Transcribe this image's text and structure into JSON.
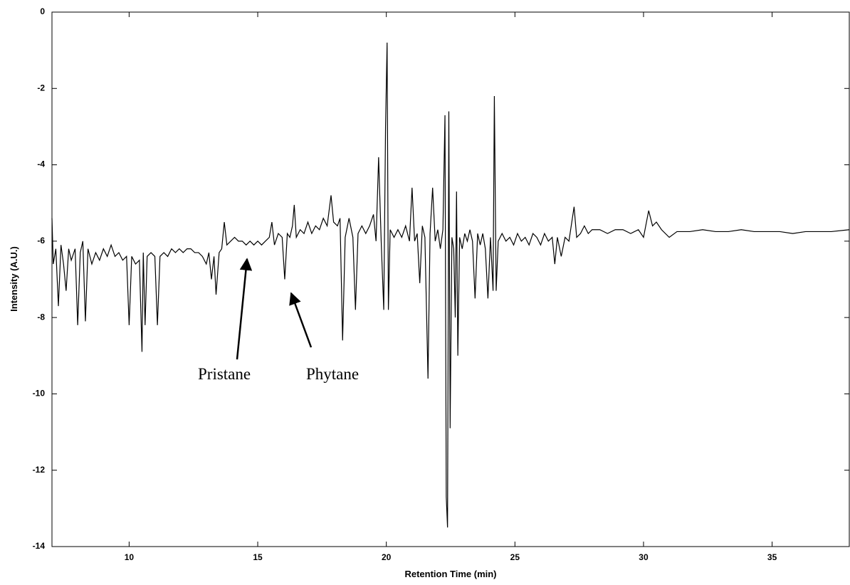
{
  "chart_data": {
    "type": "line",
    "xlabel": "Retention Time (min)",
    "ylabel": "Intensity (A.U.)",
    "x": [
      7.0,
      7.05,
      7.15,
      7.25,
      7.35,
      7.45,
      7.55,
      7.65,
      7.75,
      7.9,
      8.0,
      8.1,
      8.2,
      8.3,
      8.4,
      8.55,
      8.7,
      8.85,
      9.0,
      9.15,
      9.3,
      9.45,
      9.6,
      9.75,
      9.9,
      10.0,
      10.1,
      10.25,
      10.4,
      10.5,
      10.55,
      10.62,
      10.7,
      10.85,
      11.0,
      11.1,
      11.2,
      11.35,
      11.5,
      11.65,
      11.8,
      11.95,
      12.1,
      12.25,
      12.4,
      12.55,
      12.7,
      12.85,
      13.0,
      13.1,
      13.2,
      13.3,
      13.38,
      13.5,
      13.6,
      13.7,
      13.8,
      13.95,
      14.1,
      14.25,
      14.4,
      14.55,
      14.7,
      14.85,
      15.0,
      15.15,
      15.3,
      15.45,
      15.55,
      15.65,
      15.8,
      15.95,
      16.05,
      16.15,
      16.25,
      16.35,
      16.42,
      16.5,
      16.65,
      16.8,
      16.95,
      17.1,
      17.25,
      17.4,
      17.55,
      17.7,
      17.85,
      17.95,
      18.1,
      18.2,
      18.3,
      18.4,
      18.55,
      18.7,
      18.8,
      18.9,
      19.05,
      19.2,
      19.35,
      19.5,
      19.6,
      19.7,
      19.8,
      19.9,
      19.97,
      20.03,
      20.08,
      20.15,
      20.3,
      20.45,
      20.6,
      20.75,
      20.9,
      21.0,
      21.1,
      21.2,
      21.3,
      21.4,
      21.5,
      21.62,
      21.7,
      21.8,
      21.9,
      22.0,
      22.1,
      22.2,
      22.28,
      22.33,
      22.38,
      22.43,
      22.48,
      22.55,
      22.62,
      22.68,
      22.73,
      22.78,
      22.85,
      22.95,
      23.05,
      23.15,
      23.25,
      23.35,
      23.45,
      23.55,
      23.65,
      23.75,
      23.85,
      23.95,
      24.05,
      24.15,
      24.2,
      24.27,
      24.35,
      24.5,
      24.65,
      24.8,
      24.95,
      25.1,
      25.25,
      25.4,
      25.55,
      25.7,
      25.85,
      26.0,
      26.15,
      26.3,
      26.45,
      26.55,
      26.65,
      26.8,
      26.95,
      27.1,
      27.3,
      27.4,
      27.55,
      27.7,
      27.85,
      28.0,
      28.3,
      28.6,
      28.9,
      29.2,
      29.5,
      29.8,
      30.0,
      30.2,
      30.35,
      30.5,
      30.7,
      31.0,
      31.3,
      31.8,
      32.3,
      32.8,
      33.3,
      33.8,
      34.3,
      34.8,
      35.3,
      35.8,
      36.3,
      36.8,
      37.3,
      38.0
    ],
    "values": [
      -5.4,
      -6.6,
      -6.2,
      -7.7,
      -6.1,
      -6.6,
      -7.3,
      -6.2,
      -6.5,
      -6.2,
      -8.2,
      -6.3,
      -6.0,
      -8.1,
      -6.2,
      -6.6,
      -6.3,
      -6.5,
      -6.2,
      -6.4,
      -6.1,
      -6.4,
      -6.3,
      -6.5,
      -6.4,
      -8.2,
      -6.4,
      -6.6,
      -6.5,
      -8.9,
      -6.3,
      -8.2,
      -6.4,
      -6.3,
      -6.4,
      -8.2,
      -6.4,
      -6.3,
      -6.4,
      -6.2,
      -6.3,
      -6.2,
      -6.3,
      -6.2,
      -6.2,
      -6.3,
      -6.3,
      -6.4,
      -6.6,
      -6.3,
      -7.0,
      -6.4,
      -7.4,
      -6.3,
      -6.2,
      -5.5,
      -6.1,
      -6.0,
      -5.9,
      -6.0,
      -6.0,
      -6.1,
      -6.0,
      -6.1,
      -6.0,
      -6.1,
      -6.0,
      -5.9,
      -5.5,
      -6.1,
      -5.8,
      -5.9,
      -7.0,
      -5.8,
      -5.9,
      -5.6,
      -5.05,
      -5.9,
      -5.7,
      -5.8,
      -5.5,
      -5.8,
      -5.6,
      -5.7,
      -5.4,
      -5.6,
      -4.8,
      -5.5,
      -5.6,
      -5.4,
      -8.6,
      -5.9,
      -5.4,
      -5.9,
      -7.8,
      -5.8,
      -5.6,
      -5.8,
      -5.6,
      -5.3,
      -6.0,
      -3.8,
      -6.0,
      -7.8,
      -3.0,
      -0.8,
      -7.8,
      -5.7,
      -5.9,
      -5.7,
      -5.9,
      -5.6,
      -6.0,
      -4.6,
      -6.0,
      -5.8,
      -7.1,
      -5.6,
      -5.9,
      -9.6,
      -5.8,
      -4.6,
      -6.0,
      -5.7,
      -6.2,
      -5.7,
      -2.7,
      -12.7,
      -13.5,
      -2.6,
      -10.9,
      -5.9,
      -6.2,
      -8.0,
      -4.7,
      -9.0,
      -5.9,
      -6.2,
      -5.8,
      -6.0,
      -5.7,
      -6.0,
      -7.5,
      -5.8,
      -6.1,
      -5.8,
      -6.2,
      -7.5,
      -5.9,
      -7.3,
      -2.2,
      -7.3,
      -6.0,
      -5.8,
      -6.0,
      -5.9,
      -6.1,
      -5.8,
      -6.0,
      -5.9,
      -6.1,
      -5.8,
      -5.9,
      -6.1,
      -5.8,
      -6.0,
      -5.9,
      -6.6,
      -5.9,
      -6.4,
      -5.9,
      -6.0,
      -5.1,
      -5.9,
      -5.8,
      -5.6,
      -5.8,
      -5.7,
      -5.7,
      -5.8,
      -5.7,
      -5.7,
      -5.8,
      -5.7,
      -5.9,
      -5.2,
      -5.6,
      -5.5,
      -5.7,
      -5.9,
      -5.75,
      -5.75,
      -5.7,
      -5.75,
      -5.75,
      -5.7,
      -5.75,
      -5.75,
      -5.75,
      -5.8,
      -5.75,
      -5.75,
      -5.75,
      -5.7
    ],
    "color": "#000000",
    "xlim": [
      7,
      38
    ],
    "xticks": [
      10,
      15,
      20,
      25,
      30,
      35
    ],
    "ylim": [
      -14,
      0
    ],
    "yticks": [
      -14,
      -12,
      -10,
      -8,
      -6,
      -4,
      -2,
      0
    ],
    "annotations": [
      "Pristane",
      "Phytane"
    ]
  }
}
